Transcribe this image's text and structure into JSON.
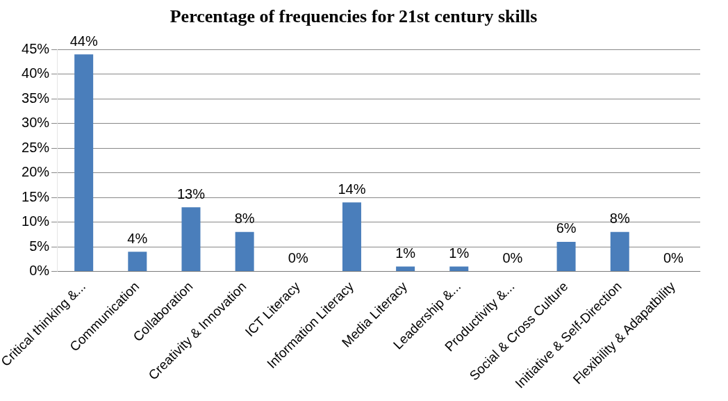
{
  "chart_data": {
    "type": "bar",
    "title": "Percentage of frequencies for 21st century skills",
    "categories": [
      "Critical thinking &...",
      "Communication",
      "Collaboration",
      "Creativity & Innovation",
      "ICT Literacy",
      "Information Literacy",
      "Media Literacy",
      "Leadership &...",
      "Productivity &...",
      "Social & Cross Culture",
      "Initiative & Self-Direction",
      "Flexibility & Adapatbility"
    ],
    "values": [
      44,
      4,
      13,
      8,
      0,
      14,
      1,
      1,
      0,
      6,
      8,
      0
    ],
    "value_labels": [
      "44%",
      "4%",
      "13%",
      "8%",
      "0%",
      "14%",
      "1%",
      "1%",
      "0%",
      "6%",
      "8%",
      "0%"
    ],
    "color": "#4a7ebb",
    "ylim": [
      0,
      45
    ],
    "yticks": [
      {
        "value": 0,
        "label": "0%"
      },
      {
        "value": 5,
        "label": "5%"
      },
      {
        "value": 10,
        "label": "10%"
      },
      {
        "value": 15,
        "label": "15%"
      },
      {
        "value": 20,
        "label": "20%"
      },
      {
        "value": 25,
        "label": "25%"
      },
      {
        "value": 30,
        "label": "30%"
      },
      {
        "value": 35,
        "label": "35%"
      },
      {
        "value": 40,
        "label": "40%"
      },
      {
        "value": 45,
        "label": "45%"
      }
    ],
    "grid": "y"
  }
}
